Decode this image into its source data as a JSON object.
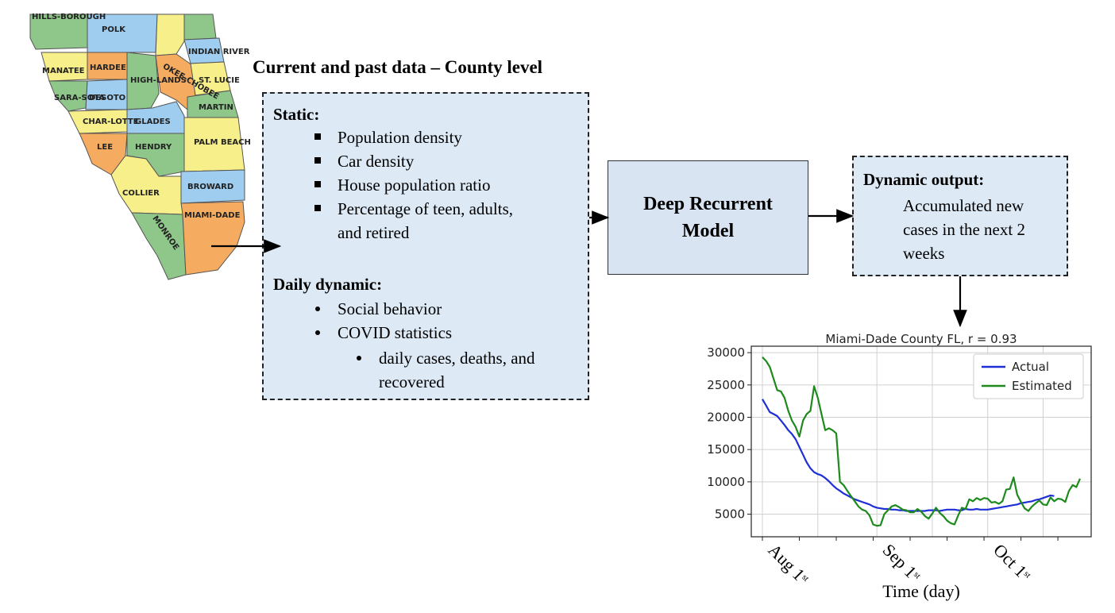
{
  "colors": {
    "box_fill": "#dde9f5",
    "model_fill": "#d9e4f3",
    "actual_line": "#1f2fd6",
    "estimated_line": "#1e8a1e",
    "map_green": "#8fc68a",
    "map_blue": "#9ecdf0",
    "map_yellow": "#f7ef8a",
    "map_orange": "#f5ac60"
  },
  "map": {
    "counties": [
      "HILLS-BOROUGH",
      "POLK",
      "INDIAN RIVER",
      "MANATEE",
      "HARDEE",
      "HIGH-LANDS",
      "OKEE-CHOBEE",
      "ST. LUCIE",
      "SARA-SOTA",
      "DESOTO",
      "MARTIN",
      "CHAR-LOTTE",
      "GLADES",
      "LEE",
      "HENDRY",
      "PALM BEACH",
      "COLLIER",
      "BROWARD",
      "MIAMI-DADE",
      "MONROE"
    ]
  },
  "main_title": "Current and past data – County level",
  "input_box": {
    "static_heading": "Static:",
    "static_items": [
      "Population density",
      "Car density",
      "House population ratio",
      "Percentage of teen, adults,",
      "and retired"
    ],
    "dynamic_heading": "Daily dynamic:",
    "dynamic_items": [
      "Social behavior",
      "COVID statistics"
    ],
    "covid_subitems": [
      "daily cases, deaths, and",
      "recovered"
    ]
  },
  "model_box": {
    "label": "Deep Recurrent Model"
  },
  "output_box": {
    "heading": "Dynamic output:",
    "text": "Accumulated new cases in the next 2 weeks"
  },
  "chart_data": {
    "type": "line",
    "title": "Miami-Dade County FL, r = 0.93",
    "xlabel": "Time (day)",
    "ylabel": "",
    "xlim": [
      0,
      80
    ],
    "ylim": [
      1500,
      31000
    ],
    "yticks": [
      5000,
      10000,
      15000,
      20000,
      25000,
      30000
    ],
    "xtick_labels": [
      {
        "x": 0,
        "label": "Aug 1",
        "sup": "st"
      },
      {
        "x": 31,
        "label": "Sep 1",
        "sup": "st"
      },
      {
        "x": 61,
        "label": "Oct 1",
        "sup": "st"
      }
    ],
    "grid": true,
    "legend_position": "top-right",
    "series": [
      {
        "name": "Actual",
        "color": "#1f2fd6",
        "values": [
          [
            0,
            22800
          ],
          [
            1,
            21800
          ],
          [
            2,
            20800
          ],
          [
            3,
            20500
          ],
          [
            4,
            20200
          ],
          [
            5,
            19500
          ],
          [
            6,
            18800
          ],
          [
            7,
            18000
          ],
          [
            8,
            17400
          ],
          [
            9,
            16600
          ],
          [
            10,
            15400
          ],
          [
            11,
            14200
          ],
          [
            12,
            13000
          ],
          [
            13,
            12100
          ],
          [
            14,
            11500
          ],
          [
            15,
            11200
          ],
          [
            16,
            11000
          ],
          [
            17,
            10600
          ],
          [
            18,
            10100
          ],
          [
            19,
            9500
          ],
          [
            20,
            9000
          ],
          [
            21,
            8600
          ],
          [
            22,
            8200
          ],
          [
            23,
            7900
          ],
          [
            24,
            7600
          ],
          [
            25,
            7300
          ],
          [
            26,
            7100
          ],
          [
            27,
            6900
          ],
          [
            28,
            6700
          ],
          [
            29,
            6500
          ],
          [
            30,
            6200
          ],
          [
            31,
            6000
          ],
          [
            32,
            5900
          ],
          [
            33,
            5800
          ],
          [
            34,
            5800
          ],
          [
            35,
            5700
          ],
          [
            36,
            5700
          ],
          [
            37,
            5600
          ],
          [
            38,
            5600
          ],
          [
            39,
            5500
          ],
          [
            40,
            5500
          ],
          [
            41,
            5500
          ],
          [
            42,
            5500
          ],
          [
            43,
            5500
          ],
          [
            44,
            5500
          ],
          [
            45,
            5600
          ],
          [
            46,
            5600
          ],
          [
            47,
            5600
          ],
          [
            48,
            5500
          ],
          [
            49,
            5600
          ],
          [
            50,
            5700
          ],
          [
            51,
            5700
          ],
          [
            52,
            5700
          ],
          [
            53,
            5600
          ],
          [
            54,
            5600
          ],
          [
            55,
            5800
          ],
          [
            56,
            5700
          ],
          [
            57,
            5700
          ],
          [
            58,
            5800
          ],
          [
            59,
            5700
          ],
          [
            60,
            5700
          ],
          [
            61,
            5700
          ],
          [
            62,
            5800
          ],
          [
            63,
            5900
          ],
          [
            64,
            6000
          ],
          [
            65,
            6100
          ],
          [
            66,
            6200
          ],
          [
            67,
            6300
          ],
          [
            68,
            6400
          ],
          [
            69,
            6500
          ],
          [
            70,
            6700
          ],
          [
            71,
            6800
          ],
          [
            72,
            6900
          ],
          [
            73,
            7000
          ],
          [
            74,
            7200
          ],
          [
            75,
            7300
          ],
          [
            76,
            7500
          ],
          [
            77,
            7700
          ],
          [
            78,
            7900
          ],
          [
            79,
            7800
          ]
        ]
      },
      {
        "name": "Estimated",
        "color": "#1e8a1e",
        "values": [
          [
            0,
            29300
          ],
          [
            1,
            28700
          ],
          [
            2,
            27800
          ],
          [
            3,
            26000
          ],
          [
            4,
            24200
          ],
          [
            5,
            24000
          ],
          [
            6,
            23000
          ],
          [
            7,
            21000
          ],
          [
            8,
            19500
          ],
          [
            9,
            18500
          ],
          [
            10,
            17000
          ],
          [
            11,
            19500
          ],
          [
            12,
            20500
          ],
          [
            13,
            21000
          ],
          [
            14,
            24800
          ],
          [
            15,
            23000
          ],
          [
            16,
            20500
          ],
          [
            17,
            18000
          ],
          [
            18,
            18300
          ],
          [
            19,
            18000
          ],
          [
            20,
            17500
          ],
          [
            21,
            10000
          ],
          [
            22,
            9500
          ],
          [
            23,
            8600
          ],
          [
            24,
            7800
          ],
          [
            25,
            7000
          ],
          [
            26,
            6200
          ],
          [
            27,
            5700
          ],
          [
            28,
            5500
          ],
          [
            29,
            4800
          ],
          [
            30,
            3400
          ],
          [
            31,
            3200
          ],
          [
            32,
            3300
          ],
          [
            33,
            5000
          ],
          [
            34,
            5600
          ],
          [
            35,
            6200
          ],
          [
            36,
            6400
          ],
          [
            37,
            6100
          ],
          [
            38,
            5700
          ],
          [
            39,
            5600
          ],
          [
            40,
            5300
          ],
          [
            41,
            5300
          ],
          [
            42,
            5800
          ],
          [
            43,
            5400
          ],
          [
            44,
            4700
          ],
          [
            45,
            4300
          ],
          [
            46,
            5100
          ],
          [
            47,
            6000
          ],
          [
            48,
            5200
          ],
          [
            49,
            4700
          ],
          [
            50,
            4000
          ],
          [
            51,
            3600
          ],
          [
            52,
            3400
          ],
          [
            53,
            4800
          ],
          [
            54,
            6000
          ],
          [
            55,
            5800
          ],
          [
            56,
            7300
          ],
          [
            57,
            7000
          ],
          [
            58,
            7500
          ],
          [
            59,
            7200
          ],
          [
            60,
            7500
          ],
          [
            61,
            7400
          ],
          [
            62,
            6800
          ],
          [
            63,
            6900
          ],
          [
            64,
            6600
          ],
          [
            65,
            7000
          ],
          [
            66,
            8800
          ],
          [
            67,
            8900
          ],
          [
            68,
            10700
          ],
          [
            69,
            8000
          ],
          [
            70,
            6900
          ],
          [
            71,
            5900
          ],
          [
            72,
            5500
          ],
          [
            73,
            6200
          ],
          [
            74,
            6700
          ],
          [
            75,
            7100
          ],
          [
            76,
            6500
          ],
          [
            77,
            6400
          ],
          [
            78,
            7600
          ],
          [
            79,
            7000
          ],
          [
            80,
            7400
          ],
          [
            81,
            7300
          ],
          [
            82,
            6900
          ],
          [
            83,
            8600
          ],
          [
            84,
            9500
          ],
          [
            85,
            9200
          ],
          [
            86,
            10500
          ]
        ]
      }
    ]
  }
}
